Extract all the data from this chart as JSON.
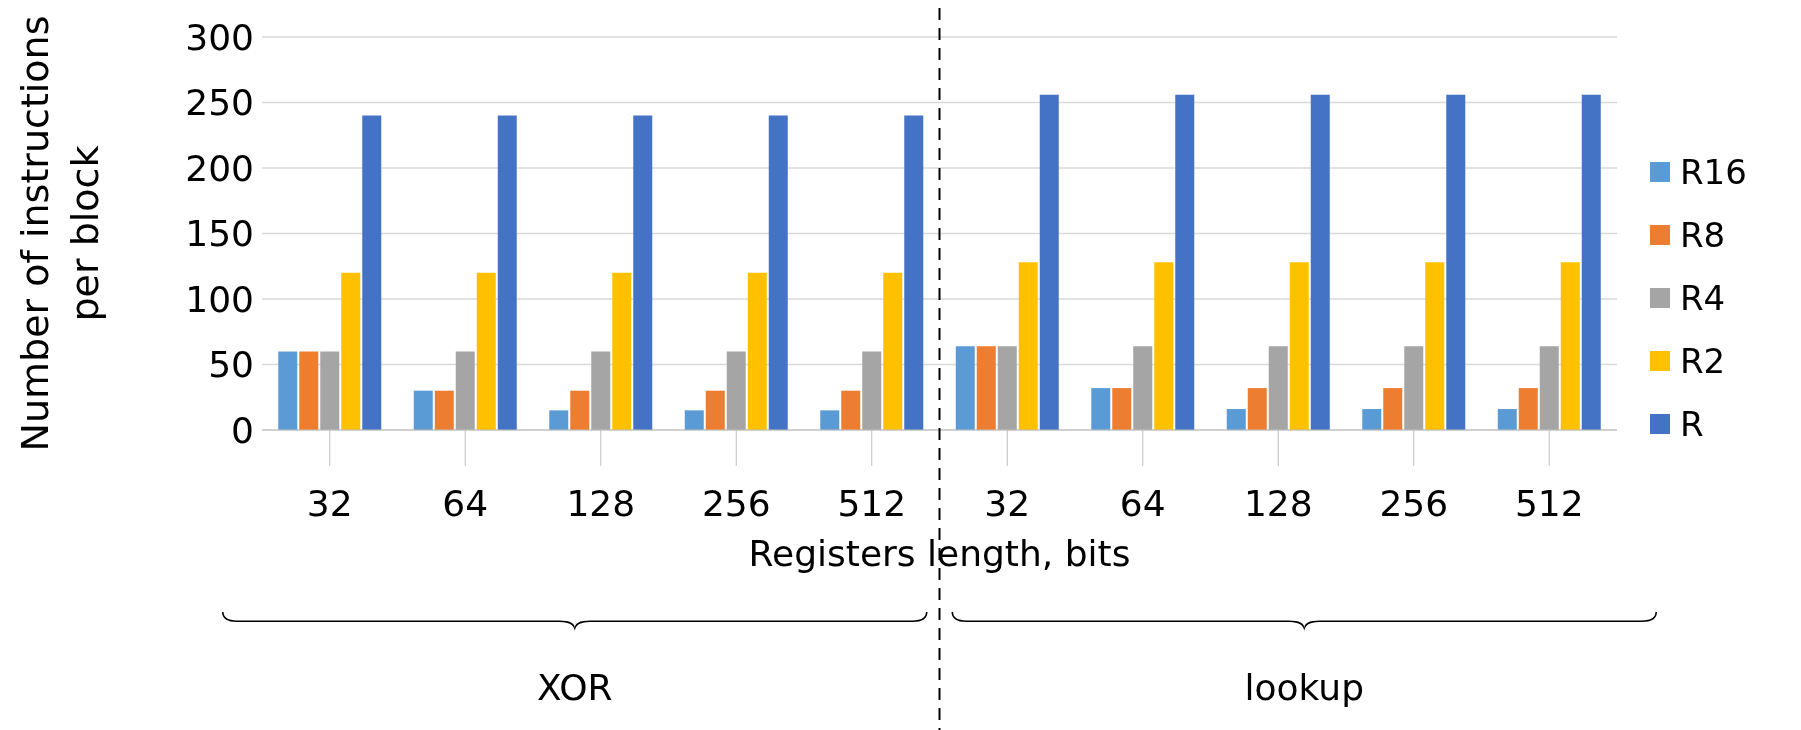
{
  "chart_data": {
    "type": "bar",
    "xlabel": "Registers length, bits",
    "ylabel": "Number of instructions per block",
    "categories": [
      "32",
      "64",
      "128",
      "256",
      "512",
      "32",
      "64",
      "128",
      "256",
      "512"
    ],
    "series": [
      {
        "name": "R16",
        "color": "#5b9bd5",
        "values": [
          60,
          30,
          15,
          15,
          15,
          64,
          32,
          16,
          16,
          16
        ]
      },
      {
        "name": "R8",
        "color": "#ed7d31",
        "values": [
          60,
          30,
          30,
          30,
          30,
          64,
          32,
          32,
          32,
          32
        ]
      },
      {
        "name": "R4",
        "color": "#a5a5a5",
        "values": [
          60,
          60,
          60,
          60,
          60,
          64,
          64,
          64,
          64,
          64
        ]
      },
      {
        "name": "R2",
        "color": "#ffc000",
        "values": [
          120,
          120,
          120,
          120,
          120,
          128,
          128,
          128,
          128,
          128
        ]
      },
      {
        "name": "R",
        "color": "#4472c4",
        "values": [
          240,
          240,
          240,
          240,
          240,
          256,
          256,
          256,
          256,
          256
        ]
      }
    ],
    "ylim": [
      0,
      300
    ],
    "yticks": [
      0,
      50,
      100,
      150,
      200,
      250,
      300
    ],
    "grid": "y",
    "legend": "right",
    "annotations": [
      "XOR",
      "lookup"
    ]
  }
}
